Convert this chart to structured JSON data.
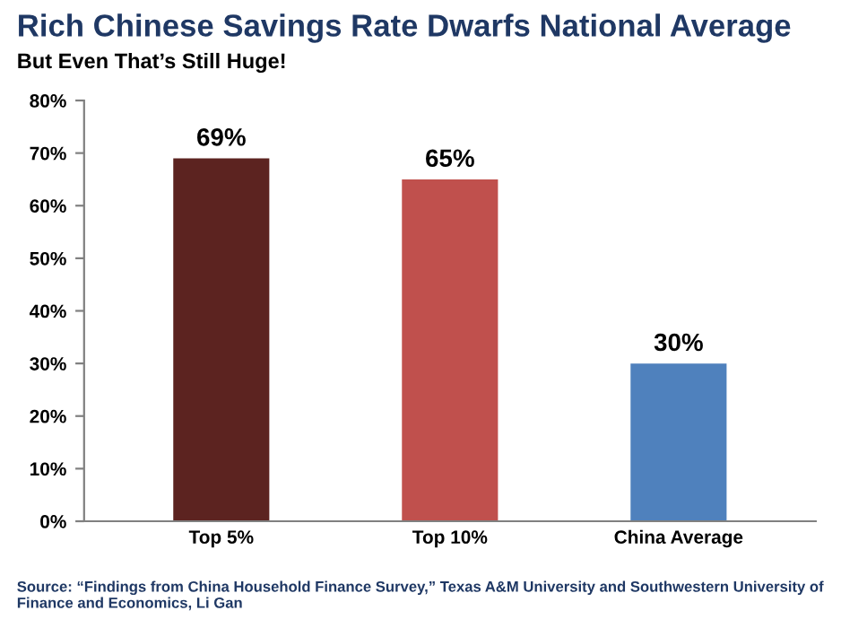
{
  "chart_data": {
    "type": "bar",
    "title": "Rich Chinese Savings Rate Dwarfs National Average",
    "subtitle": "But Even That’s Still Huge!",
    "categories": [
      "Top 5%",
      "Top 10%",
      "China Average"
    ],
    "values": [
      69,
      65,
      30
    ],
    "colors": [
      "#5c2320",
      "#c0504d",
      "#4f81bd"
    ],
    "value_labels": [
      "69%",
      "65%",
      "30%"
    ],
    "ylim": [
      0,
      80
    ],
    "yticks": [
      {
        "value": 0,
        "label": "0%"
      },
      {
        "value": 10,
        "label": "10%"
      },
      {
        "value": 20,
        "label": "20%"
      },
      {
        "value": 30,
        "label": "30%"
      },
      {
        "value": 40,
        "label": "40%"
      },
      {
        "value": 50,
        "label": "50%"
      },
      {
        "value": 60,
        "label": "60%"
      },
      {
        "value": 70,
        "label": "70%"
      },
      {
        "value": 80,
        "label": "80%"
      }
    ],
    "grid": false,
    "legend": false,
    "annotations": [
      "Source: “Findings from China Household Finance Survey,” Texas A&M University and Southwestern University of Finance and Economics, Li Gan"
    ]
  }
}
